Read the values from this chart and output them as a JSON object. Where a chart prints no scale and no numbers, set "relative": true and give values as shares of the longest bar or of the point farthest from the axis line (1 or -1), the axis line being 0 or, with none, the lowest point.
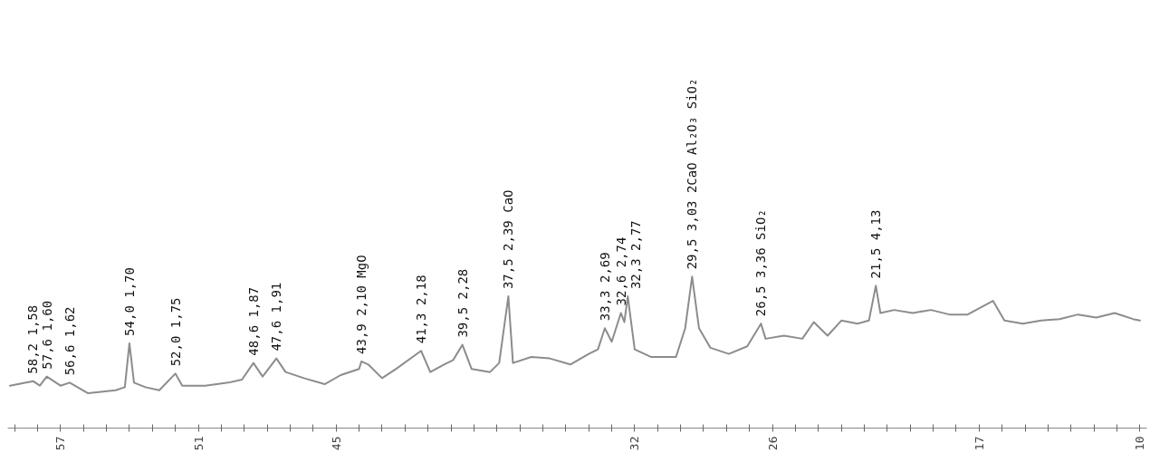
{
  "chart_data": {
    "type": "line",
    "relative": true,
    "color": "#8c8c8c",
    "x": [
      59.2,
      58.2,
      57.9,
      57.6,
      57.0,
      56.6,
      55.8,
      54.6,
      54.2,
      54.0,
      53.8,
      53.3,
      52.7,
      52.0,
      51.7,
      50.7,
      49.7,
      49.1,
      48.6,
      48.2,
      47.6,
      47.2,
      46.4,
      45.5,
      44.8,
      44.0,
      43.9,
      43.6,
      43.0,
      42.4,
      41.3,
      40.9,
      40.3,
      39.9,
      39.5,
      39.1,
      38.3,
      37.9,
      37.5,
      37.3,
      36.5,
      35.7,
      34.8,
      34.0,
      33.6,
      33.3,
      33.0,
      32.6,
      32.45,
      32.3,
      32.0,
      31.3,
      30.2,
      29.8,
      29.5,
      29.2,
      28.7,
      27.9,
      27.1,
      26.5,
      26.3,
      25.5,
      24.7,
      24.2,
      23.6,
      23.0,
      22.3,
      21.8,
      21.5,
      21.3,
      20.7,
      19.9,
      19.1,
      18.3,
      17.5,
      16.4,
      15.9,
      15.1,
      14.3,
      13.5,
      12.7,
      11.9,
      11.1,
      10.3,
      10.0
    ],
    "values": [
      0.28,
      0.31,
      0.28,
      0.34,
      0.28,
      0.3,
      0.23,
      0.25,
      0.27,
      0.56,
      0.3,
      0.27,
      0.25,
      0.36,
      0.28,
      0.28,
      0.3,
      0.32,
      0.43,
      0.34,
      0.46,
      0.37,
      0.33,
      0.29,
      0.35,
      0.39,
      0.44,
      0.42,
      0.33,
      0.39,
      0.51,
      0.37,
      0.42,
      0.45,
      0.55,
      0.39,
      0.37,
      0.43,
      0.87,
      0.43,
      0.47,
      0.46,
      0.42,
      0.49,
      0.52,
      0.66,
      0.57,
      0.76,
      0.7,
      0.87,
      0.52,
      0.47,
      0.47,
      0.66,
      1.0,
      0.66,
      0.53,
      0.49,
      0.54,
      0.69,
      0.59,
      0.61,
      0.59,
      0.7,
      0.61,
      0.71,
      0.69,
      0.71,
      0.94,
      0.76,
      0.78,
      0.76,
      0.78,
      0.75,
      0.75,
      0.84,
      0.71,
      0.69,
      0.71,
      0.72,
      0.75,
      0.73,
      0.76,
      0.72,
      0.71
    ],
    "xlim": [
      59.3,
      9.7
    ],
    "xticks": [
      57,
      51,
      45,
      32,
      26,
      17,
      10,
      {
        "value": 59,
        "label": null
      },
      {
        "value": 58,
        "label": null
      },
      {
        "value": 56,
        "label": null
      },
      {
        "value": 55,
        "label": null
      },
      {
        "value": 54,
        "label": null
      },
      {
        "value": 53,
        "label": null
      },
      {
        "value": 52,
        "label": null
      },
      {
        "value": 50,
        "label": null
      },
      {
        "value": 49,
        "label": null
      },
      {
        "value": 48,
        "label": null
      },
      {
        "value": 47,
        "label": null
      },
      {
        "value": 46,
        "label": null
      },
      {
        "value": 44,
        "label": null
      },
      {
        "value": 43,
        "label": null
      },
      {
        "value": 42,
        "label": null
      },
      {
        "value": 41,
        "label": null
      },
      {
        "value": 40,
        "label": null
      },
      {
        "value": 39,
        "label": null
      },
      {
        "value": 38,
        "label": null
      },
      {
        "value": 37,
        "label": null
      },
      {
        "value": 36,
        "label": null
      },
      {
        "value": 35,
        "label": null
      },
      {
        "value": 34,
        "label": null
      },
      {
        "value": 33,
        "label": null
      },
      {
        "value": 31,
        "label": null
      },
      {
        "value": 30,
        "label": null
      },
      {
        "value": 29,
        "label": null
      },
      {
        "value": 28,
        "label": null
      },
      {
        "value": 27,
        "label": null
      },
      {
        "value": 25,
        "label": null
      },
      {
        "value": 24,
        "label": null
      },
      {
        "value": 23,
        "label": null
      },
      {
        "value": 22,
        "label": null
      },
      {
        "value": 21,
        "label": null
      },
      {
        "value": 20,
        "label": null
      },
      {
        "value": 19,
        "label": null
      },
      {
        "value": 18,
        "label": null
      },
      {
        "value": 16,
        "label": null
      },
      {
        "value": 15,
        "label": null
      },
      {
        "value": 14,
        "label": null
      },
      {
        "value": 13,
        "label": null
      },
      {
        "value": 12,
        "label": null
      },
      {
        "value": 11,
        "label": null
      }
    ],
    "annotations": [
      {
        "text": "58,2 1,58",
        "x": 58.2,
        "y": 0.31
      },
      {
        "text": "57,6 1,60",
        "x": 57.6,
        "y": 0.34
      },
      {
        "text": "56,6 1,62",
        "x": 56.6,
        "y": 0.3
      },
      {
        "text": "54,0 1,70",
        "x": 54.0,
        "y": 0.56
      },
      {
        "text": "52,0 1,75",
        "x": 52.0,
        "y": 0.36
      },
      {
        "text": "48,6 1,87",
        "x": 48.6,
        "y": 0.43
      },
      {
        "text": "47,6 1,91",
        "x": 47.6,
        "y": 0.46
      },
      {
        "text": "43,9 2,10 MgO",
        "x": 43.9,
        "y": 0.44
      },
      {
        "text": "41,3 2,18",
        "x": 41.3,
        "y": 0.51
      },
      {
        "text": "39,5 2,28",
        "x": 39.5,
        "y": 0.55
      },
      {
        "text": "37,5 2,39 CaO",
        "x": 37.5,
        "y": 0.87
      },
      {
        "text": "33,3 2,69",
        "x": 33.3,
        "y": 0.66
      },
      {
        "text": "32,6 2,74",
        "x": 32.6,
        "y": 0.76
      },
      {
        "text": "32,3 2,77",
        "x": 32.3,
        "y": 0.87
      },
      {
        "text": "29,5 3,03 2CaO Al₂O₃ SiO₂",
        "x": 29.5,
        "y": 1.0
      },
      {
        "text": "26,5 3,36 SiO₂",
        "x": 26.5,
        "y": 0.69
      },
      {
        "text": "21,5 4,13",
        "x": 21.5,
        "y": 0.94
      }
    ]
  }
}
